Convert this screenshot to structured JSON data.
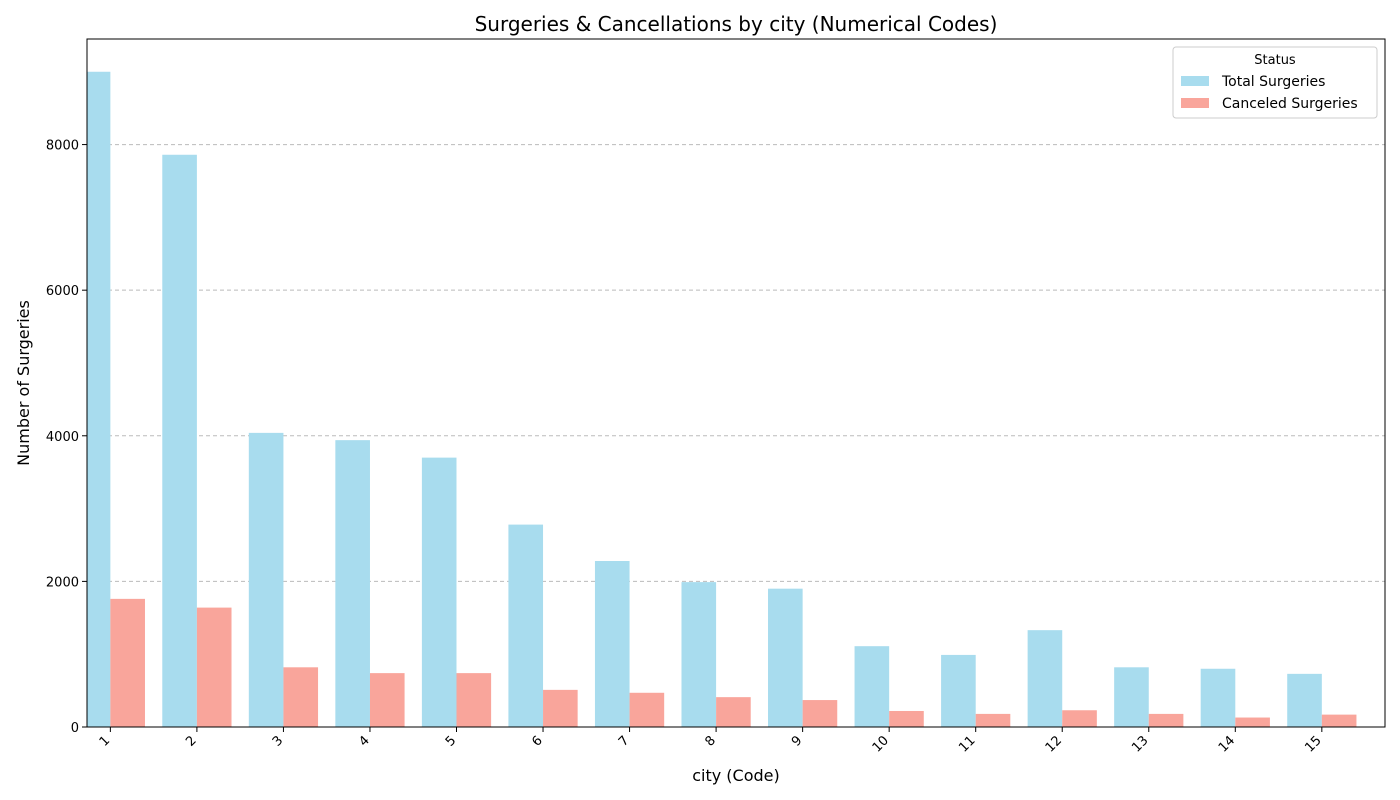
{
  "chart_data": {
    "type": "bar",
    "title": "Surgeries & Cancellations by city (Numerical Codes)",
    "xlabel": "city (Code)",
    "ylabel": "Number of Surgeries",
    "categories": [
      "1",
      "2",
      "3",
      "4",
      "5",
      "6",
      "7",
      "8",
      "9",
      "10",
      "11",
      "12",
      "13",
      "14",
      "15"
    ],
    "series": [
      {
        "name": "Total Surgeries",
        "color": "#a8dcee",
        "values": [
          9000,
          7860,
          4040,
          3940,
          3700,
          2780,
          2280,
          1990,
          1900,
          1110,
          990,
          1330,
          820,
          800,
          730
        ]
      },
      {
        "name": "Canceled Surgeries",
        "color": "#f9a59b",
        "values": [
          1760,
          1640,
          820,
          740,
          740,
          510,
          470,
          410,
          370,
          220,
          180,
          230,
          180,
          130,
          170
        ]
      }
    ],
    "yticks": [
      "0",
      "2000",
      "4000",
      "6000",
      "8000"
    ],
    "ylim": [
      0,
      9450
    ],
    "grid": "y-dashed",
    "legend": {
      "title": "Status",
      "placement": "top-right"
    }
  }
}
